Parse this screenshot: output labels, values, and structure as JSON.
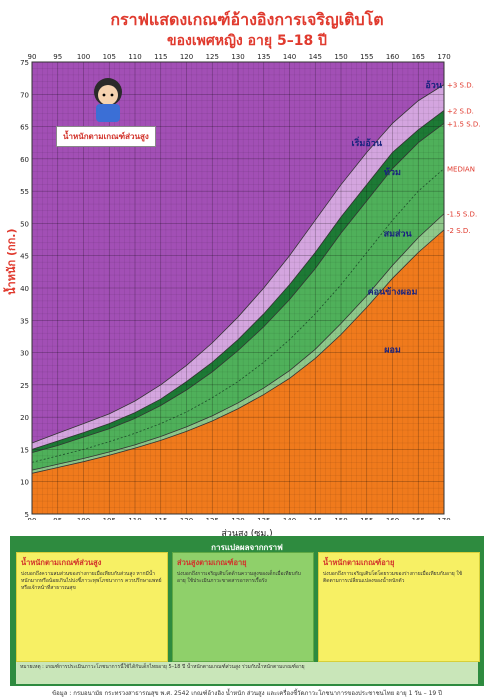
{
  "title_line1": "กราฟแสดงเกณฑ์อ้างอิงการเจริญเติบโต",
  "title_line2": "ของเพศหญิง อายุ 5–18 ปี",
  "chart_data": {
    "type": "line",
    "xlabel": "ส่วนสูง (ซม.)",
    "ylabel": "น้ำหนัก (กก.)",
    "xlim": [
      90,
      170
    ],
    "ylim": [
      5,
      75
    ],
    "xticks": [
      90,
      95,
      100,
      105,
      110,
      115,
      120,
      125,
      130,
      135,
      140,
      145,
      150,
      155,
      160,
      165,
      170
    ],
    "yticks": [
      5,
      10,
      15,
      20,
      25,
      30,
      35,
      40,
      45,
      50,
      55,
      60,
      65,
      70,
      75
    ],
    "grid": true,
    "x": [
      90,
      95,
      100,
      105,
      110,
      115,
      120,
      125,
      130,
      135,
      140,
      145,
      150,
      155,
      160,
      165,
      170
    ],
    "series": [
      {
        "name": "+3 S.D.",
        "values": [
          16,
          17.5,
          19,
          20.5,
          22.5,
          25,
          28,
          31.5,
          35.5,
          40,
          45,
          50.5,
          56,
          61,
          65.5,
          69,
          71.5
        ]
      },
      {
        "name": "+2 S.D.",
        "values": [
          15,
          16.3,
          17.6,
          19,
          20.7,
          22.8,
          25.5,
          28.5,
          32,
          36,
          40.5,
          45.5,
          51,
          56,
          61,
          64.5,
          67.5
        ]
      },
      {
        "name": "+1.5 S.D.",
        "values": [
          14.5,
          15.6,
          16.9,
          18.2,
          19.8,
          21.8,
          24.2,
          27,
          30.3,
          34,
          38.2,
          43,
          48.5,
          53.5,
          58.5,
          62.5,
          65.5
        ]
      },
      {
        "name": "MEDIAN",
        "values": [
          13,
          14,
          15,
          16.2,
          17.5,
          19,
          20.8,
          23,
          25.5,
          28.5,
          32,
          36,
          40.5,
          45.5,
          50.5,
          55,
          58.5
        ]
      },
      {
        "name": "-1.5 S.D.",
        "values": [
          11.8,
          12.7,
          13.6,
          14.6,
          15.7,
          17,
          18.5,
          20.2,
          22.2,
          24.5,
          27.2,
          30.5,
          34.5,
          38.8,
          43.5,
          47.8,
          51.5
        ]
      },
      {
        "name": "-2 S.D.",
        "values": [
          11.3,
          12.2,
          13.1,
          14.1,
          15.2,
          16.4,
          17.8,
          19.4,
          21.3,
          23.5,
          26,
          29.1,
          32.8,
          37,
          41.5,
          45.5,
          49
        ]
      }
    ],
    "zones": [
      {
        "label": "อ้วน",
        "color": "#a24fb5",
        "x": 168,
        "y": 71
      },
      {
        "label": "เริ่มอ้วน",
        "color": "#d4a5df",
        "x": 155,
        "y": 62
      },
      {
        "label": "ท้วม",
        "color": "#1d7a35",
        "x": 160,
        "y": 57.5
      },
      {
        "label": "สมส่วน",
        "color": "#4fb05a",
        "x": 161,
        "y": 48
      },
      {
        "label": "ค่อนข้างผอม",
        "color": "#8ec88a",
        "x": 160,
        "y": 39
      },
      {
        "label": "ผอม",
        "color": "#f07a1c",
        "x": 160,
        "y": 30
      }
    ]
  },
  "figure_label": "น้ำหนักตามเกณฑ์ส่วนสูง",
  "panel": {
    "title": "การแปลผลจากกราฟ",
    "box1_title": "น้ำหนักตามเกณฑ์ส่วนสูง",
    "box1_text": "บ่งบอกถึงความสมส่วนของร่างกายเมื่อเทียบกับส่วนสูง หากมีน้ำหนักมากหรือน้อยเกินไปบ่งชี้ภาวะทุพโภชนาการ ควรปรึกษาแพทย์หรือเจ้าหน้าที่สาธารณสุข",
    "box2_title": "ส่วนสูงตามเกณฑ์อายุ",
    "box2_text": "บ่งบอกถึงการเจริญเติบโตด้านความสูงของเด็กเมื่อเทียบกับอายุ ใช้ประเมินภาวะขาดสารอาหารเรื้อรัง",
    "box3_title": "น้ำหนักตามเกณฑ์อายุ",
    "box3_text": "บ่งบอกถึงการเจริญเติบโตโดยรวมของร่างกายเมื่อเทียบกับอายุ ใช้ติดตามการเปลี่ยนแปลงของน้ำหนักตัว",
    "note": "หมายเหตุ : เกณฑ์การประเมินภาวะโภชนาการนี้ใช้ได้กับเด็กไทยอายุ 5–18 ปี น้ำหนักตามเกณฑ์ส่วนสูง ร่วมกับน้ำหนักตามเกณฑ์อายุ",
    "source": "ข้อมูล : กรมอนามัย กระทรวงสาธารณสุข พ.ศ. 2542 เกณฑ์อ้างอิง น้ำหนัก ส่วนสูง และเครื่องชี้วัดภาวะโภชนาการของประชาชนไทย อายุ 1 วัน – 19 ปี"
  }
}
